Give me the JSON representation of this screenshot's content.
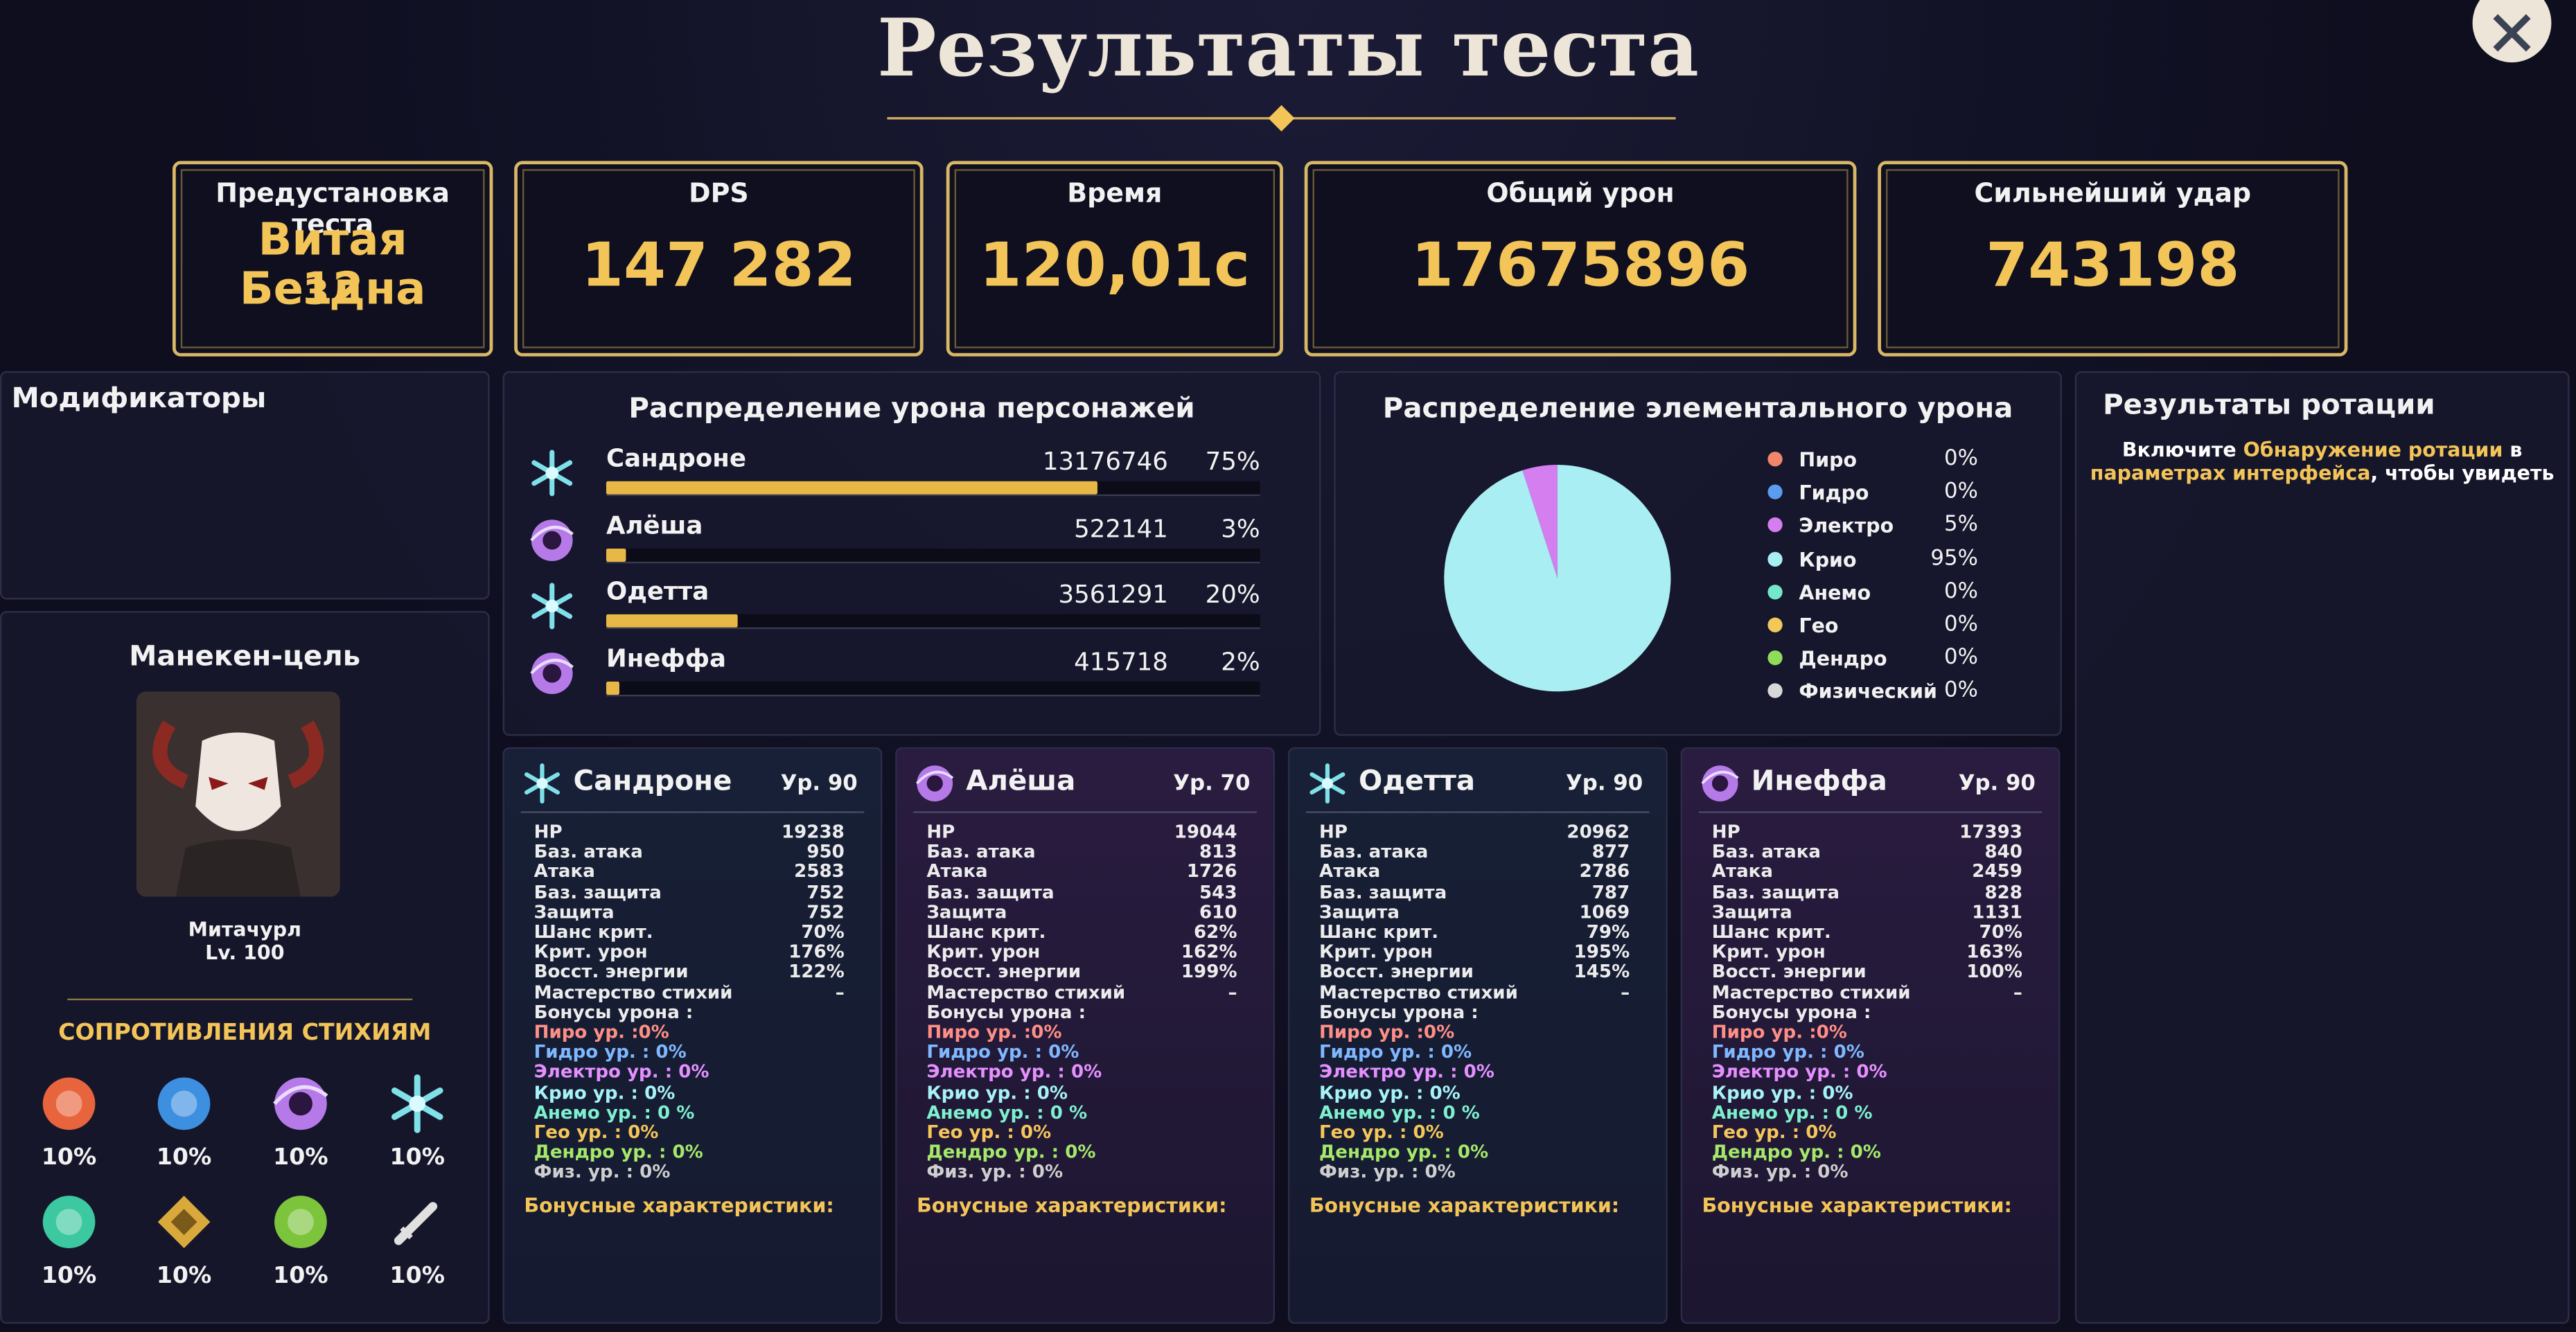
{
  "header": {
    "title": "Результаты теста"
  },
  "summary": [
    {
      "label": "Предустановка теста",
      "value": "Витая Бездна",
      "value2": "12"
    },
    {
      "label": "DPS",
      "value": "147 282"
    },
    {
      "label": "Время",
      "value": "120,01с"
    },
    {
      "label": "Общий урон",
      "value": "17675896"
    },
    {
      "label": "Сильнейший удар",
      "value": "743198"
    }
  ],
  "modifiers": {
    "title": "Модификаторы"
  },
  "target": {
    "title": "Манекен-цель",
    "name": "Митачурл",
    "level": "Lv. 100",
    "resist_title": "СОПРОТИВЛЕНИЯ СТИХИЯМ",
    "resists": [
      "10%",
      "10%",
      "10%",
      "10%",
      "10%",
      "10%",
      "10%",
      "10%"
    ]
  },
  "damage": {
    "title": "Распределение урона персонажей",
    "rows": [
      {
        "name": "Сандроне",
        "damage": "13176746",
        "share": 75,
        "share_label": "75%"
      },
      {
        "name": "Алёша",
        "damage": "522141",
        "share": 3,
        "share_label": "3%"
      },
      {
        "name": "Одетта",
        "damage": "3561291",
        "share": 20,
        "share_label": "20%"
      },
      {
        "name": "Инеффа",
        "damage": "415718",
        "share": 2,
        "share_label": "2%"
      }
    ],
    "bar_color": "#e8b847"
  },
  "elements": {
    "title": "Распределение элементального урона",
    "items": [
      {
        "name": "Пиро",
        "color": "#f0866a",
        "share": 0,
        "label": "0%"
      },
      {
        "name": "Гидро",
        "color": "#5b9bf0",
        "share": 0,
        "label": "0%"
      },
      {
        "name": "Электро",
        "color": "#d57ef0",
        "share": 5,
        "label": "5%"
      },
      {
        "name": "Крио",
        "color": "#a8eef2",
        "share": 95,
        "label": "95%"
      },
      {
        "name": "Анемо",
        "color": "#74e8cc",
        "share": 0,
        "label": "0%"
      },
      {
        "name": "Гео",
        "color": "#f2c85a",
        "share": 0,
        "label": "0%"
      },
      {
        "name": "Дендро",
        "color": "#8fdc5a",
        "share": 0,
        "label": "0%"
      },
      {
        "name": "Физический",
        "color": "#d8d8d8",
        "share": 0,
        "label": "0%"
      }
    ]
  },
  "rotation": {
    "title": "Результаты ротации",
    "line1": [
      "Включите",
      "Обнаружение ротации",
      "в"
    ],
    "line2": [
      "параметрах интерфейса",
      ", чтобы увидеть"
    ]
  },
  "characters": [
    {
      "name": "Сандроне",
      "level": "Ур. 90",
      "stats": [
        [
          "HP",
          "19238"
        ],
        [
          "Баз. атака",
          "950"
        ],
        [
          "Атака",
          "2583"
        ],
        [
          "Баз. защита",
          "752"
        ],
        [
          "Защита",
          "752"
        ],
        [
          "Шанс крит.",
          "70%"
        ],
        [
          "Крит. урон",
          "176%"
        ],
        [
          "Восст. энергии",
          "122%"
        ],
        [
          "Мастерство стихий",
          "–"
        ]
      ],
      "bonus_title": "Бонусы урона :",
      "bonuses": [
        "Пиро ур. :0%",
        "Гидро ур. : 0%",
        "Электро ур. : 0%",
        "Крио ур. : 0%",
        "Анемо ур. : 0 %",
        "Гео ур. : 0%",
        "Дендро ур. : 0%",
        "Физ. ур. : 0%"
      ],
      "extra_title": "Бонусные характеристики:"
    },
    {
      "name": "Алёша",
      "level": "Ур. 70",
      "stats": [
        [
          "HP",
          "19044"
        ],
        [
          "Баз. атака",
          "813"
        ],
        [
          "Атака",
          "1726"
        ],
        [
          "Баз. защита",
          "543"
        ],
        [
          "Защита",
          "610"
        ],
        [
          "Шанс крит.",
          "62%"
        ],
        [
          "Крит. урон",
          "162%"
        ],
        [
          "Восст. энергии",
          "199%"
        ],
        [
          "Мастерство стихий",
          "–"
        ]
      ],
      "bonus_title": "Бонусы урона :",
      "bonuses": [
        "Пиро ур. :0%",
        "Гидро ур. : 0%",
        "Электро ур. : 0%",
        "Крио ур. : 0%",
        "Анемо ур. : 0 %",
        "Гео ур. : 0%",
        "Дендро ур. : 0%",
        "Физ. ур. : 0%"
      ],
      "extra_title": "Бонусные характеристики:"
    },
    {
      "name": "Одетта",
      "level": "Ур. 90",
      "stats": [
        [
          "HP",
          "20962"
        ],
        [
          "Баз. атака",
          "877"
        ],
        [
          "Атака",
          "2786"
        ],
        [
          "Баз. защита",
          "787"
        ],
        [
          "Защита",
          "1069"
        ],
        [
          "Шанс крит.",
          "79%"
        ],
        [
          "Крит. урон",
          "195%"
        ],
        [
          "Восст. энергии",
          "145%"
        ],
        [
          "Мастерство стихий",
          "–"
        ]
      ],
      "bonus_title": "Бонусы урона :",
      "bonuses": [
        "Пиро ур. :0%",
        "Гидро ур. : 0%",
        "Электро ур. : 0%",
        "Крио ур. : 0%",
        "Анемо ур. : 0 %",
        "Гео ур. : 0%",
        "Дендро ур. : 0%",
        "Физ. ур. : 0%"
      ],
      "extra_title": "Бонусные характеристики:"
    },
    {
      "name": "Инеффа",
      "level": "Ур. 90",
      "stats": [
        [
          "HP",
          "17393"
        ],
        [
          "Баз. атака",
          "840"
        ],
        [
          "Атака",
          "2459"
        ],
        [
          "Баз. защита",
          "828"
        ],
        [
          "Защита",
          "1131"
        ],
        [
          "Шанс крит.",
          "70%"
        ],
        [
          "Крит. урон",
          "163%"
        ],
        [
          "Восст. энергии",
          "100%"
        ],
        [
          "Мастерство стихий",
          "–"
        ]
      ],
      "bonus_title": "Бонусы урона :",
      "bonuses": [
        "Пиро ур. :0%",
        "Гидро ур. : 0%",
        "Электро ур. : 0%",
        "Крио ур. : 0%",
        "Анемо ур. : 0 %",
        "Гео ур. : 0%",
        "Дендро ур. : 0%",
        "Физ. ур. : 0%"
      ],
      "extra_title": "Бонусные характеристики:"
    }
  ]
}
